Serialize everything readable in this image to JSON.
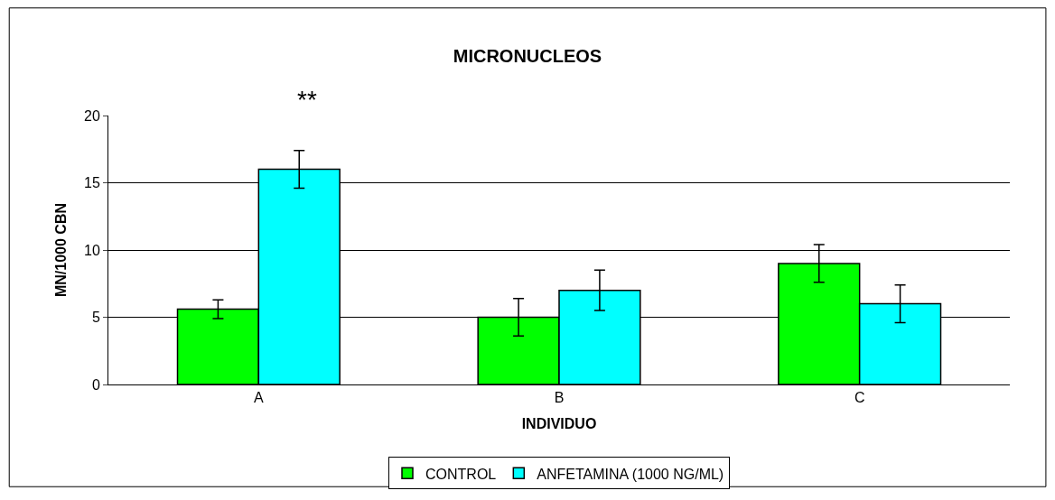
{
  "chart_data": {
    "type": "bar",
    "title": "MICRONUCLEOS",
    "xlabel": "INDIVIDUO",
    "ylabel": "MN/1000 CBN",
    "categories": [
      "A",
      "B",
      "C"
    ],
    "series": [
      {
        "name": "CONTROL",
        "color": "#00ff00",
        "values": [
          5.6,
          5,
          9
        ],
        "errors": [
          0.7,
          1.4,
          1.4
        ]
      },
      {
        "name": "ANFETAMINA (1000 NG/ML)",
        "color": "#00ffff",
        "values": [
          16,
          7,
          6
        ],
        "errors": [
          1.4,
          1.5,
          1.4
        ]
      }
    ],
    "ylim": [
      0,
      20
    ],
    "yticks": [
      0,
      5,
      10,
      15,
      20
    ],
    "grid": "y",
    "legend": "bottom",
    "annotations": [
      "**"
    ]
  }
}
